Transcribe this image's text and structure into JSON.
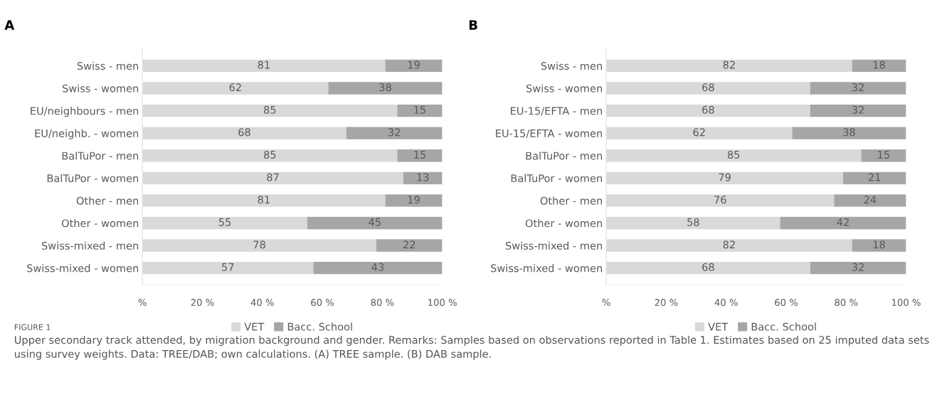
{
  "chart_data": [
    {
      "type": "bar",
      "title": "A",
      "orientation": "horizontal",
      "stacked": true,
      "data_labels": true,
      "legend": "bottom",
      "grid": false,
      "categories": [
        "Swiss - men",
        "Swiss - women",
        "EU/neighbours - men",
        "EU/neighb. - women",
        "BalTuPor - men",
        "BalTuPor - women",
        "Other - men",
        "Other - women",
        "Swiss-mixed - men",
        "Swiss-mixed - women"
      ],
      "series": [
        {
          "name": "VET",
          "color": "#d9d9d9",
          "values": [
            81,
            62,
            85,
            68,
            85,
            87,
            81,
            55,
            78,
            57
          ]
        },
        {
          "name": "Bacc. School",
          "color": "#a6a6a6",
          "values": [
            19,
            38,
            15,
            32,
            15,
            13,
            19,
            45,
            22,
            43
          ]
        }
      ],
      "xlim": [
        0,
        100
      ],
      "xticks": [
        {
          "value": 0,
          "label": "%"
        },
        {
          "value": 20,
          "label": "20 %"
        },
        {
          "value": 40,
          "label": "40 %"
        },
        {
          "value": 60,
          "label": "60 %"
        },
        {
          "value": 80,
          "label": "80 %"
        },
        {
          "value": 100,
          "label": "100 %"
        }
      ],
      "annotations": [
        "FIGURE 1",
        "Upper secondary track attended, by migration background and gender. Remarks: Samples based on observations reported in Table 1. Estimates based on 25 imputed data sets using survey weights. Data: TREE/DAB; own calculations. (A) TREE sample. (B) DAB sample."
      ]
    },
    {
      "type": "bar",
      "title": "B",
      "orientation": "horizontal",
      "stacked": true,
      "data_labels": true,
      "legend": "bottom",
      "grid": false,
      "categories": [
        "Swiss - men",
        "Swiss - women",
        "EU-15/EFTA - men",
        "EU-15/EFTA - women",
        "BalTuPor - men",
        "BalTuPor - women",
        "Other - men",
        "Other - women",
        "Swiss-mixed - men",
        "Swiss-mixed - women"
      ],
      "series": [
        {
          "name": "VET",
          "color": "#d9d9d9",
          "values": [
            82,
            68,
            68,
            62,
            85,
            79,
            76,
            58,
            82,
            68
          ]
        },
        {
          "name": "Bacc. School",
          "color": "#a6a6a6",
          "values": [
            18,
            32,
            32,
            38,
            15,
            21,
            24,
            42,
            18,
            32
          ]
        }
      ],
      "xlim": [
        0,
        100
      ],
      "xticks": [
        {
          "value": 0,
          "label": "%"
        },
        {
          "value": 20,
          "label": "20 %"
        },
        {
          "value": 40,
          "label": "40 %"
        },
        {
          "value": 60,
          "label": "60 %"
        },
        {
          "value": 80,
          "label": "80 %"
        },
        {
          "value": 100,
          "label": "100 %"
        }
      ]
    }
  ]
}
